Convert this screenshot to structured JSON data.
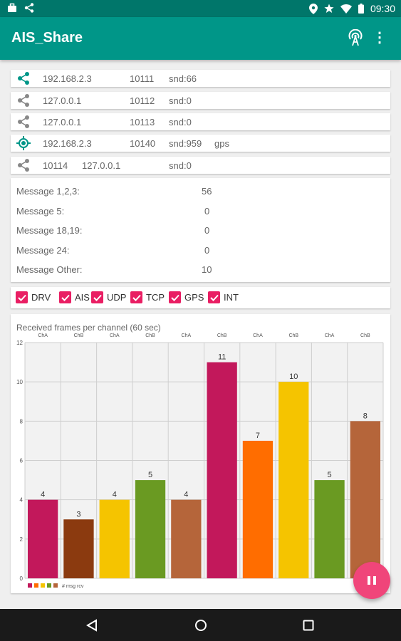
{
  "status_bar": {
    "time": "09:30"
  },
  "app": {
    "title": "AIS_Share"
  },
  "connections": [
    {
      "icon": "share-icon",
      "color": "#009688",
      "ip": "192.168.2.3",
      "port": "10111",
      "snd": "snd:66",
      "extra": ""
    },
    {
      "icon": "share-icon",
      "color": "#888888",
      "ip": "127.0.0.1",
      "port": "10112",
      "snd": "snd:0",
      "extra": ""
    },
    {
      "icon": "share-icon",
      "color": "#888888",
      "ip": "127.0.0.1",
      "port": "10113",
      "snd": "snd:0",
      "extra": ""
    },
    {
      "icon": "gps-target-icon",
      "color": "#009688",
      "ip": "192.168.2.3",
      "port": "10140",
      "snd": "snd:959",
      "extra": "gps"
    },
    {
      "icon": "share-icon",
      "color": "#888888",
      "ip": "10114",
      "port": "127.0.0.1",
      "snd": "snd:0",
      "extra": ""
    }
  ],
  "messages": [
    {
      "label": "Message 1,2,3:",
      "value": "56"
    },
    {
      "label": "Message 5:",
      "value": "0"
    },
    {
      "label": "Message 18,19:",
      "value": "0"
    },
    {
      "label": "Message 24:",
      "value": "0"
    },
    {
      "label": "Message Other:",
      "value": "10"
    }
  ],
  "filters": [
    {
      "label": "DRV",
      "checked": true
    },
    {
      "label": "AIS",
      "checked": true
    },
    {
      "label": "UDP",
      "checked": true
    },
    {
      "label": "TCP",
      "checked": true
    },
    {
      "label": "GPS",
      "checked": true
    },
    {
      "label": "INT",
      "checked": true
    }
  ],
  "chart_data": {
    "type": "bar",
    "title": "Received frames per channel (60 sec)",
    "categories": [
      "ChA",
      "ChB",
      "ChA",
      "ChB",
      "ChA",
      "ChB",
      "ChA",
      "ChB",
      "ChA",
      "ChB"
    ],
    "values": [
      4,
      3,
      4,
      5,
      4,
      11,
      7,
      10,
      5,
      8
    ],
    "colors": [
      "#c2185b",
      "#8b3a0f",
      "#f5c400",
      "#6a9a22",
      "#b5653a",
      "#c2185b",
      "#ff6d00",
      "#f5c400",
      "#6a9a22",
      "#b5653a"
    ],
    "yticks": [
      "0",
      "2",
      "4",
      "6",
      "8",
      "10",
      "12"
    ],
    "ylim": [
      0,
      12
    ],
    "grid": true,
    "legend": {
      "label": "# msg rcv",
      "position": "bottom-left"
    }
  }
}
